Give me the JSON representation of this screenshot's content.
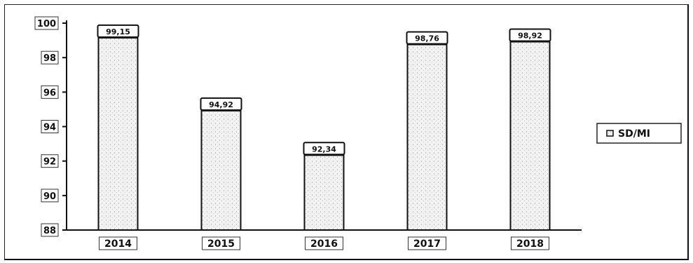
{
  "chart_data": {
    "type": "bar",
    "categories": [
      "2014",
      "2015",
      "2016",
      "2017",
      "2018"
    ],
    "series": [
      {
        "name": "SD/MI",
        "values": [
          99.15,
          94.92,
          92.34,
          98.76,
          98.92
        ]
      }
    ],
    "data_labels": [
      "99,15",
      "94,92",
      "92,34",
      "98,76",
      "98,92"
    ],
    "ylim": [
      88,
      100
    ],
    "yticks": [
      "88",
      "90",
      "92",
      "94",
      "96",
      "98",
      "100"
    ],
    "legend_position": "right",
    "grid": false,
    "colors": {
      "bar_fill": "#ececec",
      "bar_stroke": "#111111"
    }
  }
}
